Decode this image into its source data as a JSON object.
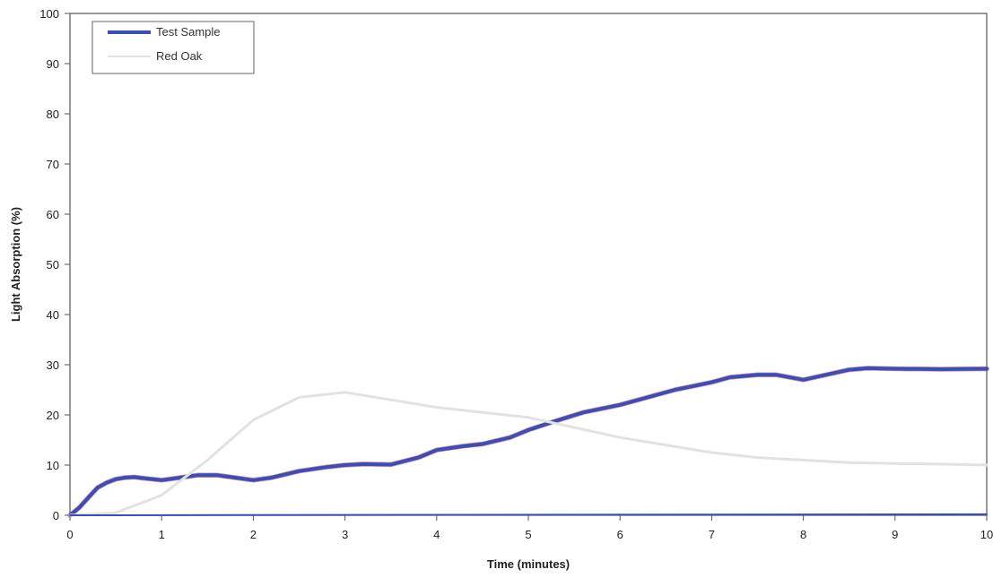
{
  "chart_data": {
    "type": "line",
    "title": "",
    "xlabel": "Time (minutes)",
    "ylabel": "Light Absorption (%)",
    "xlim": [
      0,
      10
    ],
    "ylim": [
      0,
      100
    ],
    "xticks": [
      "0",
      "1",
      "2",
      "3",
      "4",
      "5",
      "6",
      "7",
      "8",
      "9",
      "10"
    ],
    "yticks": [
      "0",
      "10",
      "20",
      "30",
      "40",
      "50",
      "60",
      "70",
      "80",
      "90",
      "100"
    ],
    "grid": false,
    "legend_position": "top-left",
    "series": [
      {
        "name": "Test Sample",
        "color": "#3a4fb0",
        "x": [
          0,
          0.1,
          0.2,
          0.3,
          0.4,
          0.5,
          0.6,
          0.7,
          0.8,
          1.0,
          1.2,
          1.4,
          1.6,
          1.8,
          2.0,
          2.2,
          2.5,
          2.8,
          3.0,
          3.2,
          3.5,
          3.8,
          4.0,
          4.3,
          4.5,
          4.8,
          5.0,
          5.3,
          5.6,
          6.0,
          6.3,
          6.6,
          7.0,
          7.2,
          7.5,
          7.7,
          8.0,
          8.2,
          8.5,
          8.7,
          9.0,
          9.5,
          10.0
        ],
        "y": [
          0,
          1.5,
          3.5,
          5.5,
          6.5,
          7.2,
          7.5,
          7.6,
          7.4,
          7.0,
          7.5,
          8.0,
          8.0,
          7.5,
          7.0,
          7.5,
          8.8,
          9.6,
          10.0,
          10.2,
          10.1,
          11.5,
          13.0,
          13.8,
          14.2,
          15.5,
          17.0,
          18.8,
          20.5,
          22.0,
          23.5,
          25.0,
          26.5,
          27.5,
          28.0,
          28.0,
          27.0,
          27.8,
          29.0,
          29.3,
          29.2,
          29.1,
          29.2
        ]
      },
      {
        "name": "Red Oak",
        "color": "#e2e2e2",
        "x": [
          0,
          0.5,
          1.0,
          1.5,
          2.0,
          2.5,
          3.0,
          3.5,
          4.0,
          4.5,
          5.0,
          5.5,
          6.0,
          6.5,
          7.0,
          7.5,
          8.0,
          8.5,
          9.0,
          9.5,
          10.0
        ],
        "y": [
          0,
          0.5,
          4.0,
          11.0,
          19.0,
          23.5,
          24.5,
          23.0,
          21.5,
          20.5,
          19.5,
          17.5,
          15.5,
          14.0,
          12.5,
          11.5,
          11.0,
          10.5,
          10.3,
          10.2,
          10.0
        ]
      },
      {
        "name": "",
        "color": "#3a4fb0",
        "x": [
          0,
          10
        ],
        "y": [
          0,
          0.2
        ]
      }
    ]
  }
}
